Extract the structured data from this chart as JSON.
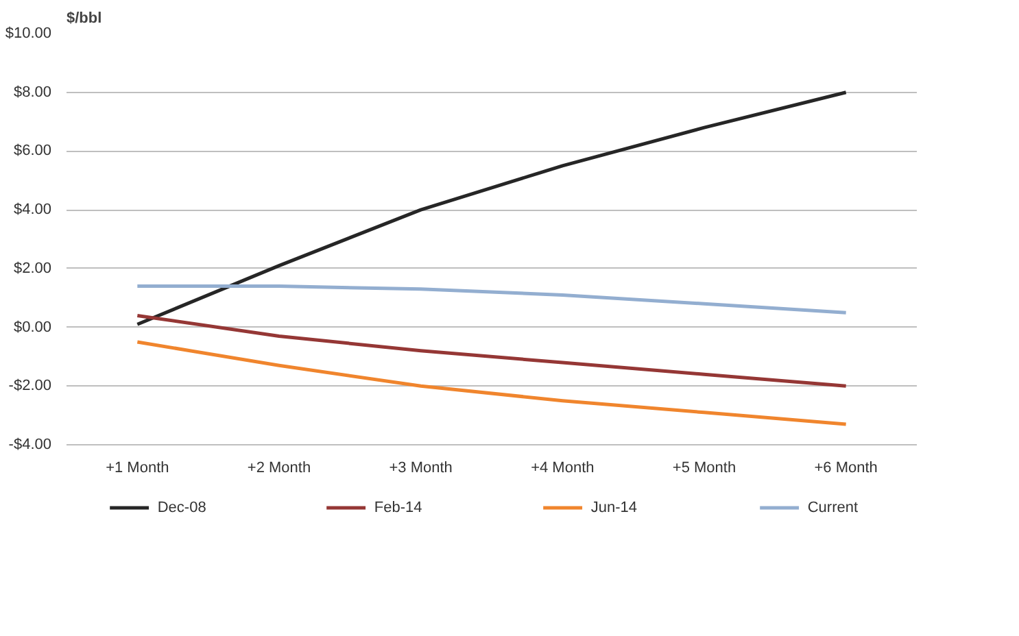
{
  "chart_data": {
    "type": "line",
    "ylabel": "$/bbl",
    "categories": [
      "+1 Month",
      "+2 Month",
      "+3 Month",
      "+4 Month",
      "+5 Month",
      "+6 Month"
    ],
    "series": [
      {
        "name": "Dec-08",
        "color": "#262626",
        "values": [
          0.1,
          2.1,
          4.0,
          5.5,
          6.8,
          8.0
        ]
      },
      {
        "name": "Feb-14",
        "color": "#953735",
        "values": [
          0.4,
          -0.3,
          -0.8,
          -1.2,
          -1.6,
          -2.0
        ]
      },
      {
        "name": "Jun-14",
        "color": "#f0852d",
        "values": [
          -0.5,
          -1.3,
          -2.0,
          -2.5,
          -2.9,
          -3.3
        ]
      },
      {
        "name": "Current",
        "color": "#93aed0",
        "values": [
          1.4,
          1.4,
          1.3,
          1.1,
          0.8,
          0.5
        ]
      }
    ],
    "ylim": [
      -4,
      10
    ],
    "yticks": [
      {
        "value": -4,
        "label": "-$4.00"
      },
      {
        "value": -2,
        "label": "-$2.00"
      },
      {
        "value": 0,
        "label": "$0.00"
      },
      {
        "value": 2,
        "label": "$2.00"
      },
      {
        "value": 4,
        "label": "$4.00"
      },
      {
        "value": 6,
        "label": "$6.00"
      },
      {
        "value": 8,
        "label": "$8.00"
      },
      {
        "value": 10,
        "label": "$10.00"
      }
    ],
    "grid": "y",
    "legend": "bottom",
    "marker": "none",
    "line_style": "solid"
  }
}
